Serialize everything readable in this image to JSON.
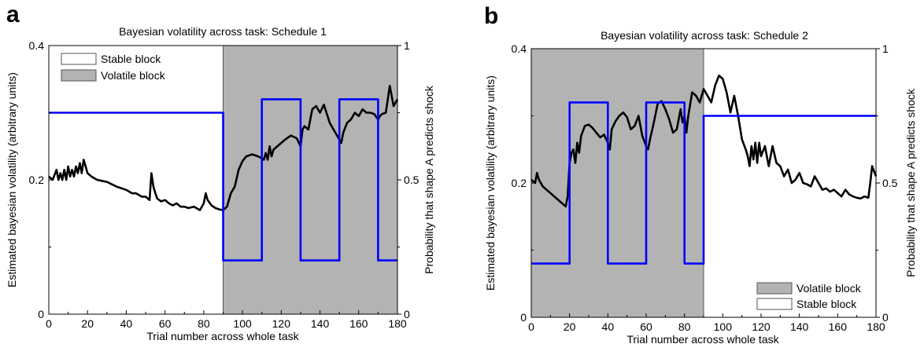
{
  "chart_data": [
    {
      "type": "line",
      "panel_letter": "a",
      "title": "Bayesian volatility across task: Schedule 1",
      "xlabel": "Trial number across whole task",
      "ylabel": "Estimated bayesian volatility (arbitrary units)",
      "y2label": "Probability that shape A predicts shock",
      "xlim": [
        0,
        180
      ],
      "ylim": [
        0,
        0.4
      ],
      "y2lim": [
        0,
        1
      ],
      "xticks": [
        "0",
        "20",
        "40",
        "60",
        "80",
        "100",
        "120",
        "140",
        "160",
        "180"
      ],
      "yticks": [
        "0",
        "0.2",
        "0.4"
      ],
      "y2ticks": [
        "0",
        "0.5",
        "1"
      ],
      "legend_position": "top-left",
      "legend": [
        {
          "label": "Stable block",
          "color": "#ffffff"
        },
        {
          "label": "Volatile block",
          "color": "#b3b3b3"
        }
      ],
      "shaded_regions": [
        {
          "x0": 90,
          "x1": 180,
          "kind": "volatile",
          "color": "#b3b3b3"
        }
      ],
      "series": [
        {
          "axis": "left",
          "color": "#000000",
          "x": [
            0,
            2,
            4,
            5,
            6,
            7,
            8,
            9,
            10,
            11,
            12,
            13,
            14,
            15,
            16,
            17,
            18,
            19,
            20,
            22,
            25,
            30,
            35,
            40,
            43,
            45,
            48,
            50,
            52,
            53,
            54,
            55,
            56,
            58,
            60,
            62,
            64,
            66,
            68,
            70,
            72,
            75,
            78,
            80,
            81,
            82,
            84,
            86,
            88,
            90,
            92,
            94,
            96,
            98,
            100,
            102,
            105,
            108,
            110,
            111,
            112,
            113,
            114,
            115,
            116,
            118,
            120,
            122,
            125,
            128,
            130,
            131,
            132,
            134,
            136,
            138,
            140,
            142,
            145,
            148,
            150,
            151,
            152,
            154,
            156,
            158,
            160,
            162,
            164,
            166,
            168,
            170,
            171,
            172,
            174,
            176,
            178,
            180
          ],
          "y": [
            0.205,
            0.2,
            0.215,
            0.2,
            0.21,
            0.2,
            0.215,
            0.2,
            0.22,
            0.205,
            0.215,
            0.205,
            0.22,
            0.21,
            0.225,
            0.21,
            0.23,
            0.22,
            0.21,
            0.205,
            0.2,
            0.197,
            0.19,
            0.185,
            0.18,
            0.18,
            0.175,
            0.175,
            0.17,
            0.21,
            0.19,
            0.18,
            0.172,
            0.168,
            0.17,
            0.165,
            0.162,
            0.165,
            0.16,
            0.16,
            0.158,
            0.16,
            0.155,
            0.165,
            0.18,
            0.17,
            0.162,
            0.158,
            0.156,
            0.155,
            0.16,
            0.18,
            0.19,
            0.215,
            0.228,
            0.235,
            0.238,
            0.235,
            0.232,
            0.23,
            0.24,
            0.23,
            0.25,
            0.235,
            0.245,
            0.25,
            0.255,
            0.26,
            0.266,
            0.262,
            0.25,
            0.275,
            0.28,
            0.275,
            0.305,
            0.31,
            0.3,
            0.312,
            0.285,
            0.27,
            0.26,
            0.255,
            0.27,
            0.285,
            0.29,
            0.3,
            0.295,
            0.305,
            0.3,
            0.3,
            0.298,
            0.29,
            0.295,
            0.298,
            0.3,
            0.34,
            0.31,
            0.32
          ]
        },
        {
          "axis": "right",
          "color": "#0000ff",
          "x": [
            0,
            90,
            90,
            110,
            110,
            130,
            130,
            150,
            150,
            170,
            170,
            180
          ],
          "y": [
            0.75,
            0.75,
            0.2,
            0.2,
            0.8,
            0.8,
            0.2,
            0.2,
            0.8,
            0.8,
            0.2,
            0.2
          ]
        }
      ]
    },
    {
      "type": "line",
      "panel_letter": "b",
      "title": "Bayesian volatility across task: Schedule 2",
      "xlabel": "Trial number across whole task",
      "ylabel": "Estimated bayesian volatility (arbitrary units)",
      "y2label": "Probability that shape A predicts shock",
      "xlim": [
        0,
        180
      ],
      "ylim": [
        0,
        0.4
      ],
      "y2lim": [
        0,
        1
      ],
      "xticks": [
        "0",
        "20",
        "40",
        "60",
        "80",
        "100",
        "120",
        "140",
        "160",
        "180"
      ],
      "yticks": [
        "0",
        "0.2",
        "0.4"
      ],
      "y2ticks": [
        "0",
        "0.5",
        "1"
      ],
      "legend_position": "bottom-right",
      "legend": [
        {
          "label": "Volatile block",
          "color": "#b3b3b3"
        },
        {
          "label": "Stable block",
          "color": "#ffffff"
        }
      ],
      "shaded_regions": [
        {
          "x0": 0,
          "x1": 90,
          "kind": "volatile",
          "color": "#b3b3b3"
        }
      ],
      "series": [
        {
          "axis": "left",
          "color": "#000000",
          "x": [
            0,
            2,
            3,
            4,
            6,
            8,
            10,
            12,
            14,
            16,
            18,
            19,
            20,
            21,
            22,
            23,
            24,
            25,
            26,
            28,
            30,
            32,
            34,
            36,
            38,
            40,
            41,
            42,
            44,
            46,
            48,
            50,
            52,
            54,
            56,
            58,
            60,
            61,
            62,
            64,
            66,
            68,
            70,
            72,
            74,
            76,
            78,
            79,
            80,
            81,
            82,
            84,
            86,
            88,
            89,
            90,
            92,
            94,
            96,
            98,
            100,
            102,
            104,
            106,
            108,
            110,
            112,
            113,
            114,
            115,
            116,
            117,
            118,
            119,
            120,
            122,
            124,
            126,
            128,
            130,
            132,
            134,
            136,
            138,
            140,
            142,
            144,
            146,
            148,
            150,
            152,
            154,
            156,
            158,
            160,
            162,
            164,
            166,
            168,
            170,
            172,
            174,
            176,
            177,
            178,
            180
          ],
          "y": [
            0.205,
            0.2,
            0.215,
            0.205,
            0.195,
            0.19,
            0.185,
            0.18,
            0.175,
            0.17,
            0.165,
            0.18,
            0.23,
            0.245,
            0.25,
            0.23,
            0.26,
            0.245,
            0.27,
            0.285,
            0.287,
            0.282,
            0.275,
            0.268,
            0.272,
            0.26,
            0.25,
            0.28,
            0.292,
            0.3,
            0.305,
            0.298,
            0.28,
            0.285,
            0.3,
            0.27,
            0.255,
            0.25,
            0.265,
            0.29,
            0.318,
            0.322,
            0.31,
            0.295,
            0.275,
            0.28,
            0.31,
            0.29,
            0.3,
            0.275,
            0.3,
            0.335,
            0.33,
            0.32,
            0.33,
            0.34,
            0.33,
            0.32,
            0.345,
            0.36,
            0.355,
            0.335,
            0.305,
            0.33,
            0.3,
            0.265,
            0.25,
            0.24,
            0.225,
            0.255,
            0.235,
            0.26,
            0.23,
            0.26,
            0.24,
            0.255,
            0.225,
            0.255,
            0.23,
            0.225,
            0.21,
            0.22,
            0.2,
            0.205,
            0.215,
            0.2,
            0.198,
            0.195,
            0.21,
            0.2,
            0.19,
            0.192,
            0.187,
            0.19,
            0.185,
            0.18,
            0.19,
            0.183,
            0.18,
            0.178,
            0.177,
            0.18,
            0.178,
            0.2,
            0.225,
            0.21
          ]
        },
        {
          "axis": "right",
          "color": "#0000ff",
          "x": [
            0,
            20,
            20,
            40,
            40,
            60,
            60,
            80,
            80,
            90,
            90,
            180
          ],
          "y": [
            0.2,
            0.2,
            0.8,
            0.8,
            0.2,
            0.2,
            0.8,
            0.8,
            0.2,
            0.2,
            0.75,
            0.75
          ]
        }
      ]
    }
  ]
}
